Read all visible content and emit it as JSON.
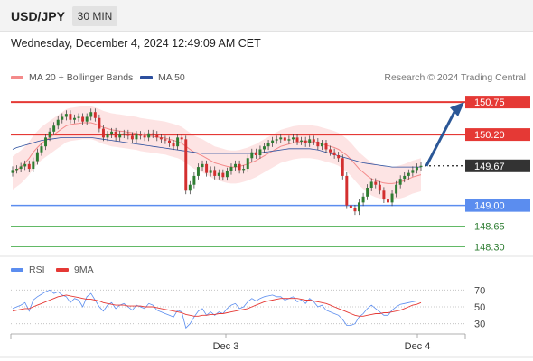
{
  "header": {
    "symbol": "USD/JPY",
    "timeframe": "30 MIN",
    "datetime": "Wednesday, December 4, 2024 12:49:09 AM CET"
  },
  "legend": {
    "ma20_label": "MA 20 + Bollinger Bands",
    "ma50_label": "MA 50",
    "copyright": "Research © 2024 Trading Central"
  },
  "rsi_legend": {
    "rsi_label": "RSI",
    "ma_label": "9MA"
  },
  "colors": {
    "up": "#2e7d32",
    "down": "#d32f2f",
    "resistance": "#e53935",
    "support": "#5b8def",
    "target": "#4caf50",
    "ma20": "#f48a8a",
    "ma50": "#2c4f9e",
    "band": "#fde1e1",
    "arrow": "#2b5797",
    "rsi": "#5b8def",
    "rsi_ma": "#e53935"
  },
  "chart_data": [
    {
      "type": "candlestick",
      "title": "USD/JPY 30 MIN",
      "current_price": 149.67,
      "ylim": [
        148.2,
        150.95
      ],
      "x_tick_labels": [
        "Dec 3",
        "Dec 4"
      ],
      "levels": [
        {
          "price": 150.75,
          "label": "150.75",
          "kind": "resistance"
        },
        {
          "price": 150.2,
          "label": "150.20",
          "kind": "resistance"
        },
        {
          "price": 149.67,
          "label": "149.67",
          "kind": "current"
        },
        {
          "price": 149.0,
          "label": "149.00",
          "kind": "support"
        },
        {
          "price": 148.65,
          "label": "148.65",
          "kind": "target"
        },
        {
          "price": 148.3,
          "label": "148.30",
          "kind": "target"
        }
      ],
      "forecast_arrow": {
        "from": 149.67,
        "to": 150.75
      },
      "closes": [
        149.6,
        149.62,
        149.66,
        149.7,
        149.62,
        149.75,
        149.9,
        150.0,
        150.15,
        150.25,
        150.35,
        150.45,
        150.5,
        150.55,
        150.45,
        150.48,
        150.5,
        150.42,
        150.5,
        150.58,
        150.48,
        150.3,
        150.15,
        150.2,
        150.25,
        150.15,
        150.2,
        150.22,
        150.18,
        150.12,
        150.2,
        150.18,
        150.15,
        150.22,
        150.2,
        150.15,
        150.12,
        150.1,
        150.05,
        150.0,
        150.15,
        150.12,
        149.25,
        149.35,
        149.5,
        149.65,
        149.7,
        149.55,
        149.6,
        149.5,
        149.55,
        149.48,
        149.58,
        149.65,
        149.7,
        149.6,
        149.62,
        149.8,
        149.9,
        149.85,
        149.95,
        150.0,
        150.05,
        150.1,
        150.12,
        150.15,
        150.1,
        150.12,
        150.15,
        150.08,
        150.1,
        150.05,
        150.12,
        150.08,
        150.0,
        150.05,
        149.95,
        149.9,
        149.85,
        149.8,
        149.5,
        149.0,
        148.95,
        148.9,
        149.05,
        149.15,
        149.3,
        149.4,
        149.35,
        149.25,
        149.1,
        149.05,
        149.2,
        149.35,
        149.45,
        149.5,
        149.55,
        149.6,
        149.65,
        149.67
      ],
      "ma20": [
        149.55,
        149.6,
        149.65,
        149.72,
        149.8,
        149.9,
        149.98,
        150.05,
        150.1,
        150.15,
        150.2,
        150.25,
        150.3,
        150.35,
        150.37,
        150.38,
        150.39,
        150.4,
        150.4,
        150.4,
        150.38,
        150.35,
        150.32,
        150.3,
        150.28,
        150.27,
        150.26,
        150.25,
        150.24,
        150.23,
        150.22,
        150.2,
        150.19,
        150.18,
        150.17,
        150.16,
        150.15,
        150.14,
        150.12,
        150.1,
        150.08,
        150.05,
        150.0,
        149.95,
        149.9,
        149.87,
        149.84,
        149.8,
        149.76,
        149.72,
        149.7,
        149.68,
        149.66,
        149.65,
        149.65,
        149.66,
        149.68,
        149.7,
        149.73,
        149.76,
        149.8,
        149.84,
        149.88,
        149.92,
        149.96,
        150.0,
        150.02,
        150.04,
        150.06,
        150.07,
        150.08,
        150.08,
        150.08,
        150.07,
        150.06,
        150.04,
        150.02,
        150.0,
        149.98,
        149.95,
        149.9,
        149.85,
        149.78,
        149.7,
        149.62,
        149.56,
        149.5,
        149.45,
        149.42,
        149.4,
        149.38,
        149.37,
        149.37,
        149.38,
        149.4,
        149.42,
        149.45,
        149.48,
        149.5,
        149.52
      ],
      "ma50": [
        149.95,
        149.98,
        150.0,
        150.02,
        150.04,
        150.06,
        150.08,
        150.1,
        150.11,
        150.12,
        150.13,
        150.14,
        150.15,
        150.15,
        150.15,
        150.15,
        150.15,
        150.15,
        150.15,
        150.15,
        150.14,
        150.13,
        150.12,
        150.11,
        150.1,
        150.09,
        150.08,
        150.07,
        150.06,
        150.05,
        150.04,
        150.03,
        150.02,
        150.01,
        150.0,
        149.99,
        149.98,
        149.97,
        149.96,
        149.95,
        149.94,
        149.93,
        149.92,
        149.91,
        149.9,
        149.89,
        149.88,
        149.88,
        149.88,
        149.88,
        149.88,
        149.88,
        149.88,
        149.88,
        149.88,
        149.88,
        149.88,
        149.88,
        149.88,
        149.88,
        149.89,
        149.9,
        149.91,
        149.92,
        149.93,
        149.94,
        149.95,
        149.96,
        149.96,
        149.96,
        149.96,
        149.96,
        149.96,
        149.95,
        149.94,
        149.92,
        149.9,
        149.88,
        149.86,
        149.84,
        149.82,
        149.8,
        149.78,
        149.76,
        149.74,
        149.72,
        149.71,
        149.7,
        149.69,
        149.68,
        149.67,
        149.66,
        149.65,
        149.65,
        149.65,
        149.65,
        149.65,
        149.65,
        149.65,
        149.65
      ]
    },
    {
      "type": "line",
      "title": "RSI",
      "ylim": [
        20,
        80
      ],
      "y_ticks": [
        70,
        50,
        30
      ],
      "x_tick_labels": [
        "Dec 3",
        "Dec 4"
      ],
      "series": [
        {
          "name": "RSI",
          "values": [
            48,
            50,
            52,
            55,
            45,
            58,
            62,
            65,
            68,
            70,
            66,
            68,
            64,
            62,
            55,
            60,
            58,
            50,
            62,
            66,
            58,
            50,
            45,
            52,
            55,
            48,
            52,
            54,
            50,
            46,
            52,
            50,
            48,
            54,
            52,
            46,
            44,
            42,
            40,
            38,
            46,
            44,
            25,
            30,
            38,
            45,
            48,
            40,
            44,
            40,
            44,
            42,
            48,
            52,
            54,
            48,
            50,
            56,
            60,
            57,
            60,
            62,
            63,
            64,
            62,
            62,
            58,
            60,
            62,
            56,
            58,
            54,
            60,
            56,
            50,
            52,
            46,
            44,
            42,
            40,
            35,
            28,
            28,
            30,
            38,
            42,
            48,
            52,
            48,
            44,
            40,
            40,
            46,
            50,
            53,
            54,
            55,
            56,
            57,
            57
          ]
        },
        {
          "name": "9MA",
          "values": [
            45,
            46,
            47,
            48,
            48,
            50,
            52,
            54,
            56,
            58,
            60,
            62,
            63,
            64,
            63,
            62,
            61,
            60,
            59,
            59,
            58,
            57,
            55,
            54,
            53,
            52,
            52,
            52,
            51,
            51,
            51,
            51,
            50,
            50,
            50,
            49,
            48,
            47,
            46,
            45,
            44,
            43,
            41,
            40,
            39,
            39,
            40,
            40,
            41,
            41,
            42,
            42,
            43,
            44,
            45,
            46,
            47,
            48,
            50,
            52,
            54,
            56,
            57,
            58,
            59,
            60,
            60,
            60,
            60,
            60,
            59,
            58,
            58,
            57,
            56,
            55,
            54,
            52,
            50,
            48,
            46,
            44,
            42,
            40,
            39,
            39,
            40,
            41,
            42,
            42,
            43,
            43,
            44,
            45,
            46,
            48,
            50,
            52,
            53,
            55
          ]
        }
      ]
    }
  ]
}
